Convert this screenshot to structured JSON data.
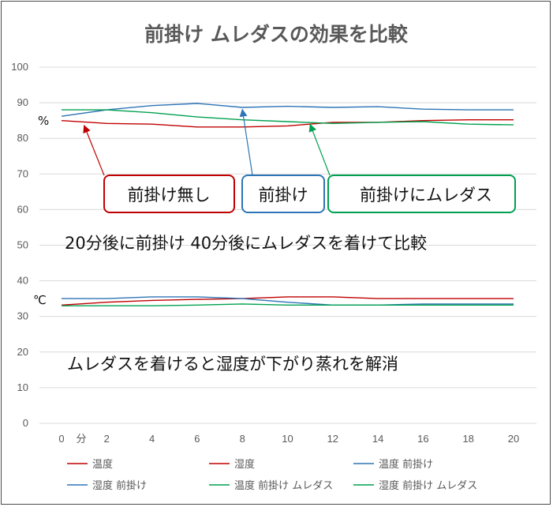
{
  "chart_data": {
    "type": "line",
    "title": "前掛け ムレダスの効果を比較",
    "x": [
      0,
      2,
      4,
      6,
      8,
      10,
      12,
      14,
      16,
      18,
      20
    ],
    "x_ticks": [
      "0",
      "2",
      "4",
      "6",
      "8",
      "10",
      "12",
      "14",
      "16",
      "18",
      "20"
    ],
    "x_unit": "分",
    "y_ticks": [
      "0",
      "10",
      "20",
      "30",
      "40",
      "50",
      "60",
      "70",
      "80",
      "90",
      "100"
    ],
    "ylim": [
      0,
      100
    ],
    "grid": true,
    "legend_position": "bottom",
    "series": [
      {
        "name": "温度",
        "color": "#c00000",
        "values": [
          33.2,
          34.0,
          34.5,
          34.8,
          35.0,
          35.5,
          35.5,
          35.0,
          35.0,
          35.0,
          35.0
        ]
      },
      {
        "name": "湿度",
        "color": "#c00000",
        "values": [
          85.0,
          84.2,
          84.0,
          83.2,
          83.2,
          83.5,
          84.5,
          84.5,
          85.0,
          85.2,
          85.2
        ]
      },
      {
        "name": "温度 前掛け",
        "color": "#2e75b6",
        "values": [
          35.0,
          35.0,
          35.5,
          35.5,
          35.0,
          34.0,
          33.2,
          33.2,
          33.5,
          33.5,
          33.5
        ]
      },
      {
        "name": "湿度 前掛け",
        "color": "#2e75b6",
        "values": [
          86.2,
          88.0,
          89.2,
          89.8,
          88.7,
          89.0,
          88.7,
          88.9,
          88.2,
          88.0,
          88.0
        ]
      },
      {
        "name": "温度 前掛け ムレダス",
        "color": "#00a050",
        "values": [
          33.0,
          33.0,
          33.0,
          33.2,
          33.5,
          33.2,
          33.2,
          33.2,
          33.2,
          33.2,
          33.2
        ]
      },
      {
        "name": "湿度 前掛け ムレダス",
        "color": "#00a050",
        "values": [
          88.0,
          88.0,
          87.2,
          86.0,
          85.2,
          84.7,
          84.2,
          84.5,
          84.7,
          84.0,
          83.8
        ]
      }
    ],
    "annotations": {
      "percent_unit": "%",
      "celsius_unit": "℃",
      "callouts": [
        {
          "label": "前掛け無し",
          "color": "#c00000",
          "target_x": 1.0,
          "target_y": 84.5
        },
        {
          "label": "前掛け",
          "color": "#2e75b6",
          "target_x": 8.0,
          "target_y": 89.0
        },
        {
          "label": "前掛けにムレダス",
          "color": "#00a050",
          "target_x": 11.0,
          "target_y": 84.8
        }
      ],
      "note1": "20分後に前掛け 40分後にムレダスを着けて比較",
      "note2": "ムレダスを着けると湿度が下がり蒸れを解消"
    }
  }
}
